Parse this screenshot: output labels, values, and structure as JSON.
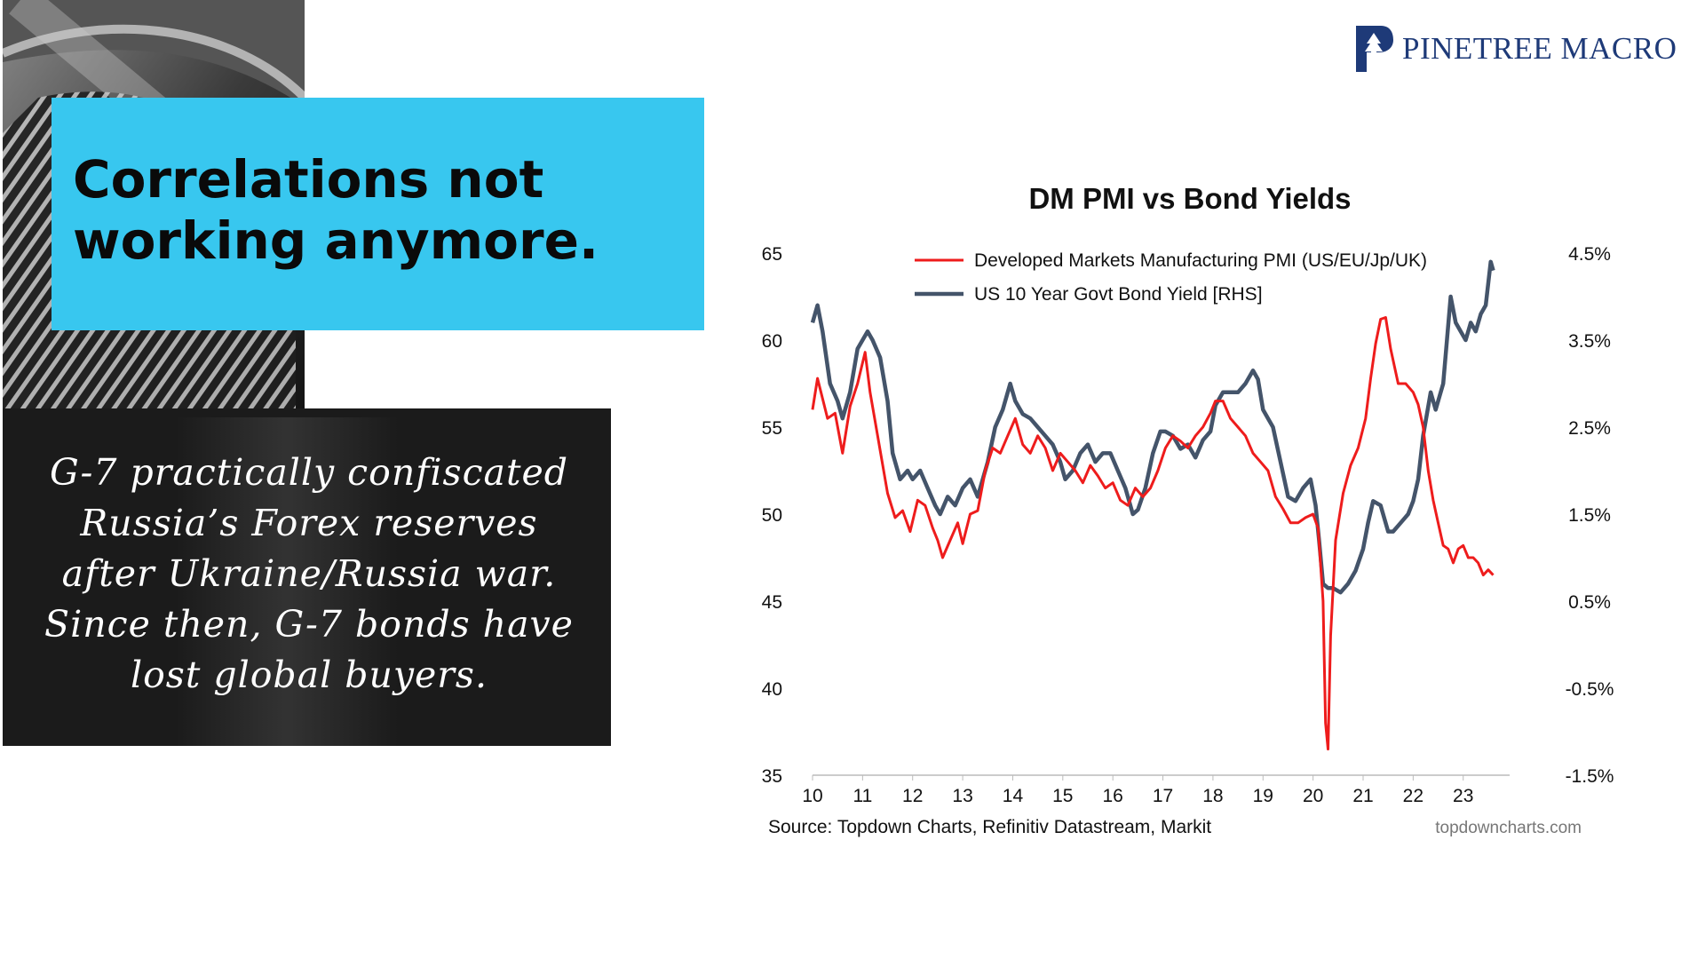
{
  "headline": "Correlations not working anymore.",
  "note": "G-7 practically confiscated Russia’s Forex reserves after Ukraine/Russia war. Since then, G-7 bonds have lost global buyers.",
  "brand": {
    "name": "PINETREE MACRO",
    "logo_icon": "pinetree-logo-icon"
  },
  "colors": {
    "accent": "#38c7ef",
    "pmi": "#ee1c1c",
    "yield": "#44546a",
    "brand": "#1e3a78"
  },
  "chart_data": {
    "type": "line",
    "title": "DM PMI vs Bond Yields",
    "x_ticks": [
      "10",
      "11",
      "12",
      "13",
      "14",
      "15",
      "16",
      "17",
      "18",
      "19",
      "20",
      "21",
      "22",
      "23"
    ],
    "xlim": [
      2010,
      2023.75
    ],
    "y_left": {
      "ticks": [
        "65",
        "60",
        "55",
        "50",
        "45",
        "40",
        "35"
      ],
      "ylim": [
        35,
        65
      ]
    },
    "y_right": {
      "ticks": [
        "4.5%",
        "3.5%",
        "2.5%",
        "1.5%",
        "0.5%",
        "-0.5%",
        "-1.5%"
      ],
      "ylim": [
        -1.5,
        4.5
      ]
    },
    "series": [
      {
        "name": "Developed Markets Manufacturing PMI (US/EU/Jp/UK)",
        "axis": "left",
        "x": [
          2010.0,
          2010.1,
          2010.3,
          2010.45,
          2010.6,
          2010.75,
          2010.9,
          2011.05,
          2011.15,
          2011.3,
          2011.5,
          2011.65,
          2011.8,
          2011.95,
          2012.1,
          2012.25,
          2012.4,
          2012.5,
          2012.6,
          2012.75,
          2012.9,
          2013.0,
          2013.15,
          2013.3,
          2013.45,
          2013.6,
          2013.75,
          2013.9,
          2014.05,
          2014.2,
          2014.35,
          2014.5,
          2014.65,
          2014.8,
          2014.95,
          2015.1,
          2015.25,
          2015.4,
          2015.55,
          2015.7,
          2015.85,
          2016.0,
          2016.15,
          2016.3,
          2016.45,
          2016.6,
          2016.75,
          2016.9,
          2017.05,
          2017.2,
          2017.35,
          2017.5,
          2017.65,
          2017.8,
          2017.95,
          2018.05,
          2018.2,
          2018.35,
          2018.5,
          2018.65,
          2018.8,
          2018.95,
          2019.1,
          2019.25,
          2019.4,
          2019.55,
          2019.7,
          2019.85,
          2020.0,
          2020.1,
          2020.2,
          2020.25,
          2020.3,
          2020.35,
          2020.45,
          2020.6,
          2020.75,
          2020.9,
          2021.05,
          2021.15,
          2021.25,
          2021.35,
          2021.45,
          2021.55,
          2021.7,
          2021.85,
          2022.0,
          2022.1,
          2022.2,
          2022.3,
          2022.4,
          2022.5,
          2022.6,
          2022.7,
          2022.8,
          2022.9,
          2023.0,
          2023.1,
          2023.2,
          2023.3,
          2023.4,
          2023.5,
          2023.6
        ],
        "y": [
          56,
          57.8,
          55.5,
          55.8,
          53.5,
          56.2,
          57.5,
          59.3,
          57,
          54.5,
          51.2,
          49.8,
          50.2,
          49,
          50.8,
          50.5,
          49.2,
          48.5,
          47.5,
          48.5,
          49.5,
          48.3,
          50,
          50.2,
          52.5,
          53.8,
          53.5,
          54.5,
          55.5,
          54,
          53.5,
          54.5,
          53.8,
          52.5,
          53.5,
          53,
          52.5,
          51.8,
          52.8,
          52.2,
          51.5,
          51.8,
          50.8,
          50.5,
          51.5,
          51,
          51.5,
          52.5,
          53.8,
          54.5,
          54.2,
          53.8,
          54.5,
          55,
          55.8,
          56.5,
          56.5,
          55.5,
          55,
          54.5,
          53.5,
          53,
          52.5,
          51,
          50.3,
          49.5,
          49.5,
          49.8,
          50,
          49.2,
          45,
          38,
          36.5,
          43,
          48.5,
          51.2,
          52.8,
          53.8,
          55.5,
          57.8,
          59.8,
          61.2,
          61.3,
          59.5,
          57.5,
          57.5,
          57,
          56.3,
          55,
          52.5,
          50.8,
          49.5,
          48.2,
          48,
          47.2,
          48,
          48.2,
          47.5,
          47.5,
          47.2,
          46.5,
          46.8,
          46.5
        ]
      },
      {
        "name": "US 10 Year Govt Bond Yield [RHS]",
        "axis": "right",
        "x": [
          2010.0,
          2010.1,
          2010.2,
          2010.35,
          2010.5,
          2010.6,
          2010.75,
          2010.9,
          2011.1,
          2011.2,
          2011.35,
          2011.5,
          2011.6,
          2011.75,
          2011.9,
          2012.0,
          2012.15,
          2012.3,
          2012.45,
          2012.55,
          2012.7,
          2012.85,
          2013.0,
          2013.15,
          2013.3,
          2013.5,
          2013.65,
          2013.8,
          2013.95,
          2014.05,
          2014.2,
          2014.35,
          2014.5,
          2014.65,
          2014.8,
          2014.95,
          2015.05,
          2015.2,
          2015.35,
          2015.5,
          2015.65,
          2015.8,
          2015.95,
          2016.1,
          2016.25,
          2016.4,
          2016.5,
          2016.65,
          2016.8,
          2016.95,
          2017.05,
          2017.2,
          2017.35,
          2017.5,
          2017.65,
          2017.8,
          2017.95,
          2018.05,
          2018.2,
          2018.35,
          2018.5,
          2018.65,
          2018.8,
          2018.9,
          2019.0,
          2019.1,
          2019.2,
          2019.35,
          2019.5,
          2019.65,
          2019.8,
          2019.95,
          2020.05,
          2020.12,
          2020.2,
          2020.3,
          2020.4,
          2020.55,
          2020.7,
          2020.85,
          2021.0,
          2021.1,
          2021.2,
          2021.35,
          2021.5,
          2021.6,
          2021.75,
          2021.9,
          2022.0,
          2022.1,
          2022.2,
          2022.35,
          2022.45,
          2022.6,
          2022.75,
          2022.85,
          2022.95,
          2023.05,
          2023.15,
          2023.25,
          2023.35,
          2023.45,
          2023.55,
          2023.6
        ],
        "y": [
          3.7,
          3.9,
          3.6,
          3.0,
          2.8,
          2.6,
          2.9,
          3.4,
          3.6,
          3.5,
          3.3,
          2.8,
          2.2,
          1.9,
          2.0,
          1.9,
          2.0,
          1.8,
          1.6,
          1.5,
          1.7,
          1.6,
          1.8,
          1.9,
          1.7,
          2.1,
          2.5,
          2.7,
          3.0,
          2.8,
          2.65,
          2.6,
          2.5,
          2.4,
          2.3,
          2.1,
          1.9,
          2.0,
          2.2,
          2.3,
          2.1,
          2.2,
          2.2,
          2.0,
          1.8,
          1.5,
          1.55,
          1.8,
          2.2,
          2.45,
          2.45,
          2.4,
          2.25,
          2.3,
          2.15,
          2.35,
          2.45,
          2.75,
          2.9,
          2.9,
          2.9,
          3.0,
          3.15,
          3.05,
          2.7,
          2.6,
          2.5,
          2.1,
          1.7,
          1.65,
          1.8,
          1.9,
          1.6,
          1.2,
          0.7,
          0.65,
          0.65,
          0.6,
          0.7,
          0.85,
          1.1,
          1.4,
          1.65,
          1.6,
          1.3,
          1.3,
          1.4,
          1.5,
          1.65,
          1.9,
          2.4,
          2.9,
          2.7,
          3.0,
          4.0,
          3.7,
          3.6,
          3.5,
          3.7,
          3.6,
          3.8,
          3.9,
          4.4,
          4.3
        ]
      }
    ],
    "source": "Source: Topdown Charts, Refinitiv Datastream, Markit",
    "credit": "topdowncharts.com",
    "legend_position": "top"
  }
}
